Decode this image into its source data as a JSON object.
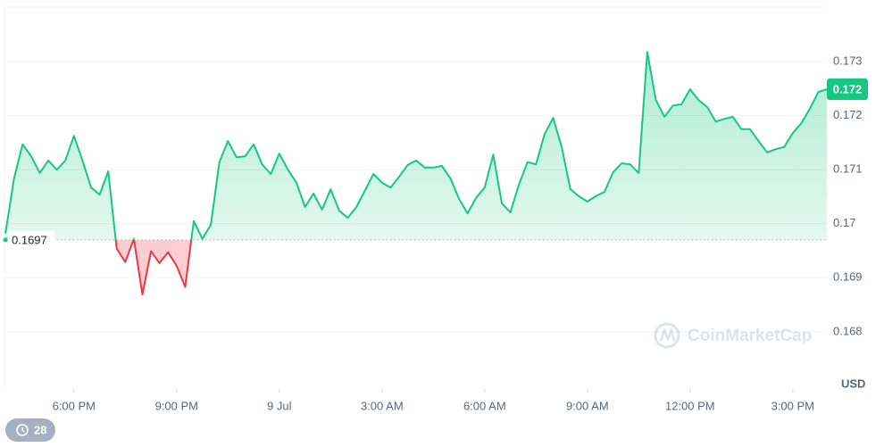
{
  "chart_data": {
    "type": "line",
    "series": [
      {
        "name": "Price",
        "color": "#16c784",
        "below_color": "#ea3943",
        "x": [
          -2,
          -1.75,
          -1.5,
          -1.25,
          -1,
          -0.75,
          -0.5,
          -0.25,
          0,
          0.25,
          0.5,
          0.75,
          1,
          1.25,
          1.5,
          1.75,
          2,
          2.25,
          2.5,
          2.75,
          3,
          3.25,
          3.5,
          3.75,
          4,
          4.25,
          4.5,
          4.75,
          5,
          5.25,
          5.5,
          5.75,
          6,
          6.25,
          6.5,
          6.75,
          7,
          7.25,
          7.5,
          7.75,
          8,
          8.25,
          8.5,
          8.75,
          9,
          9.25,
          9.5,
          9.75,
          10,
          10.25,
          10.5,
          10.75,
          11,
          11.25,
          11.5,
          11.75,
          12,
          12.25,
          12.5,
          12.75,
          13,
          13.25,
          13.5,
          13.75,
          14,
          14.25,
          14.5,
          14.75,
          15,
          15.25,
          15.5,
          15.75,
          16,
          16.25,
          16.5,
          16.75,
          17,
          17.25,
          17.5,
          17.75,
          18,
          18.25,
          18.5,
          18.75,
          19,
          19.25,
          19.5,
          19.75,
          20,
          20.25,
          20.5,
          20.75,
          21,
          21.25,
          21.5,
          21.75,
          22
        ],
        "values": [
          0.16982,
          0.17084,
          0.17147,
          0.17125,
          0.17094,
          0.17117,
          0.171,
          0.17117,
          0.17163,
          0.17117,
          0.17067,
          0.17054,
          0.17097,
          0.16954,
          0.16929,
          0.16972,
          0.16869,
          0.16949,
          0.16927,
          0.16947,
          0.16922,
          0.16883,
          0.17005,
          0.16972,
          0.16998,
          0.17114,
          0.17153,
          0.17123,
          0.17125,
          0.17147,
          0.1711,
          0.17092,
          0.1713,
          0.171,
          0.17076,
          0.17031,
          0.17056,
          0.17026,
          0.17064,
          0.17024,
          0.17011,
          0.17031,
          0.17061,
          0.17092,
          0.17076,
          0.17067,
          0.17087,
          0.17109,
          0.17117,
          0.17104,
          0.17104,
          0.17107,
          0.17084,
          0.17046,
          0.17019,
          0.17048,
          0.17067,
          0.17128,
          0.17038,
          0.17021,
          0.17072,
          0.17114,
          0.1711,
          0.17166,
          0.17196,
          0.17142,
          0.17064,
          0.17051,
          0.17041,
          0.17051,
          0.17059,
          0.17095,
          0.17112,
          0.1711,
          0.17094,
          0.17318,
          0.17229,
          0.17198,
          0.17219,
          0.17221,
          0.17249,
          0.17229,
          0.17216,
          0.17189,
          0.17194,
          0.17198,
          0.17175,
          0.17175,
          0.17153,
          0.17132,
          0.17138,
          0.17142,
          0.17168,
          0.17186,
          0.17213,
          0.17244,
          0.17249
        ],
        "last_value_label": "0.172"
      }
    ],
    "baseline": 0.1697,
    "xlim": [
      -2.03,
      21.97
    ],
    "xticks": [
      {
        "value": 0,
        "label": "6:00 PM"
      },
      {
        "value": 3,
        "label": "9:00 PM"
      },
      {
        "value": 6,
        "label": "9 Jul"
      },
      {
        "value": 9,
        "label": "3:00 AM"
      },
      {
        "value": 12,
        "label": "6:00 AM"
      },
      {
        "value": 15,
        "label": "9:00 AM"
      },
      {
        "value": 18,
        "label": "12:00 PM"
      },
      {
        "value": 21,
        "label": "3:00 PM"
      }
    ],
    "ylim": [
      0.16694,
      0.17401
    ],
    "yticks": [
      0.168,
      0.169,
      0.17,
      0.171,
      0.172,
      0.173
    ],
    "y_unit": "USD",
    "grid": true,
    "watermark": "CoinMarketCap",
    "badge": "28"
  }
}
